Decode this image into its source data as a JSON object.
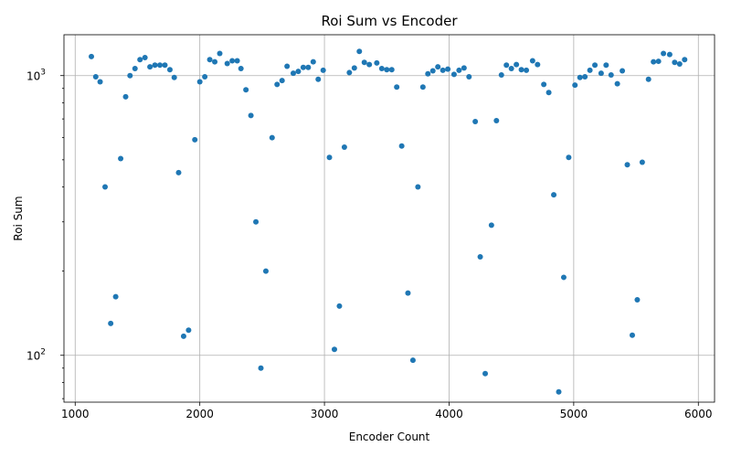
{
  "chart_data": {
    "type": "scatter",
    "title": "Roi Sum vs Encoder",
    "xlabel": "Encoder Count",
    "ylabel": "Roi Sum",
    "xlim": [
      910,
      6130
    ],
    "ylim": [
      68,
      1400
    ],
    "yscale": "log",
    "grid": true,
    "marker_color": "#1f77b4",
    "xticks": [
      {
        "value": 1000,
        "label": "1000"
      },
      {
        "value": 2000,
        "label": "2000"
      },
      {
        "value": 3000,
        "label": "3000"
      },
      {
        "value": 4000,
        "label": "4000"
      },
      {
        "value": 5000,
        "label": "5000"
      },
      {
        "value": 6000,
        "label": "6000"
      }
    ],
    "yticks": [
      {
        "value": 100,
        "label": "10",
        "exp": "2"
      },
      {
        "value": 1000,
        "label": "10",
        "exp": "3"
      }
    ],
    "points": [
      [
        1130,
        1170
      ],
      [
        1165,
        990
      ],
      [
        1200,
        950
      ],
      [
        1240,
        400
      ],
      [
        1285,
        130
      ],
      [
        1325,
        162
      ],
      [
        1365,
        505
      ],
      [
        1405,
        840
      ],
      [
        1440,
        1000
      ],
      [
        1480,
        1060
      ],
      [
        1520,
        1140
      ],
      [
        1560,
        1160
      ],
      [
        1600,
        1075
      ],
      [
        1640,
        1090
      ],
      [
        1680,
        1090
      ],
      [
        1720,
        1090
      ],
      [
        1760,
        1050
      ],
      [
        1795,
        985
      ],
      [
        1830,
        450
      ],
      [
        1870,
        117
      ],
      [
        1910,
        123
      ],
      [
        1960,
        590
      ],
      [
        2000,
        950
      ],
      [
        2040,
        990
      ],
      [
        2080,
        1140
      ],
      [
        2120,
        1120
      ],
      [
        2160,
        1200
      ],
      [
        2220,
        1105
      ],
      [
        2260,
        1130
      ],
      [
        2300,
        1130
      ],
      [
        2330,
        1060
      ],
      [
        2370,
        890
      ],
      [
        2410,
        720
      ],
      [
        2450,
        300
      ],
      [
        2490,
        90
      ],
      [
        2530,
        200
      ],
      [
        2580,
        600
      ],
      [
        2620,
        930
      ],
      [
        2660,
        960
      ],
      [
        2700,
        1080
      ],
      [
        2750,
        1020
      ],
      [
        2790,
        1035
      ],
      [
        2830,
        1070
      ],
      [
        2870,
        1070
      ],
      [
        2910,
        1120
      ],
      [
        2950,
        970
      ],
      [
        2990,
        1045
      ],
      [
        3040,
        510
      ],
      [
        3080,
        105
      ],
      [
        3120,
        150
      ],
      [
        3160,
        555
      ],
      [
        3200,
        1025
      ],
      [
        3240,
        1065
      ],
      [
        3280,
        1220
      ],
      [
        3320,
        1115
      ],
      [
        3360,
        1095
      ],
      [
        3420,
        1110
      ],
      [
        3460,
        1060
      ],
      [
        3500,
        1050
      ],
      [
        3540,
        1050
      ],
      [
        3580,
        910
      ],
      [
        3620,
        560
      ],
      [
        3670,
        167
      ],
      [
        3710,
        96
      ],
      [
        3750,
        400
      ],
      [
        3790,
        910
      ],
      [
        3830,
        1015
      ],
      [
        3870,
        1040
      ],
      [
        3910,
        1075
      ],
      [
        3950,
        1045
      ],
      [
        3990,
        1055
      ],
      [
        4040,
        1010
      ],
      [
        4080,
        1045
      ],
      [
        4120,
        1065
      ],
      [
        4160,
        990
      ],
      [
        4210,
        685
      ],
      [
        4250,
        225
      ],
      [
        4290,
        86
      ],
      [
        4340,
        292
      ],
      [
        4380,
        690
      ],
      [
        4420,
        1005
      ],
      [
        4460,
        1090
      ],
      [
        4500,
        1060
      ],
      [
        4540,
        1095
      ],
      [
        4580,
        1050
      ],
      [
        4620,
        1045
      ],
      [
        4670,
        1130
      ],
      [
        4710,
        1095
      ],
      [
        4760,
        930
      ],
      [
        4800,
        870
      ],
      [
        4840,
        375
      ],
      [
        4880,
        74
      ],
      [
        4920,
        190
      ],
      [
        4960,
        510
      ],
      [
        5010,
        925
      ],
      [
        5050,
        985
      ],
      [
        5090,
        990
      ],
      [
        5130,
        1045
      ],
      [
        5170,
        1090
      ],
      [
        5220,
        1020
      ],
      [
        5260,
        1090
      ],
      [
        5300,
        1005
      ],
      [
        5350,
        935
      ],
      [
        5390,
        1040
      ],
      [
        5430,
        480
      ],
      [
        5470,
        118
      ],
      [
        5510,
        158
      ],
      [
        5550,
        490
      ],
      [
        5600,
        970
      ],
      [
        5640,
        1120
      ],
      [
        5680,
        1125
      ],
      [
        5720,
        1200
      ],
      [
        5770,
        1190
      ],
      [
        5810,
        1115
      ],
      [
        5850,
        1100
      ],
      [
        5890,
        1140
      ]
    ]
  }
}
